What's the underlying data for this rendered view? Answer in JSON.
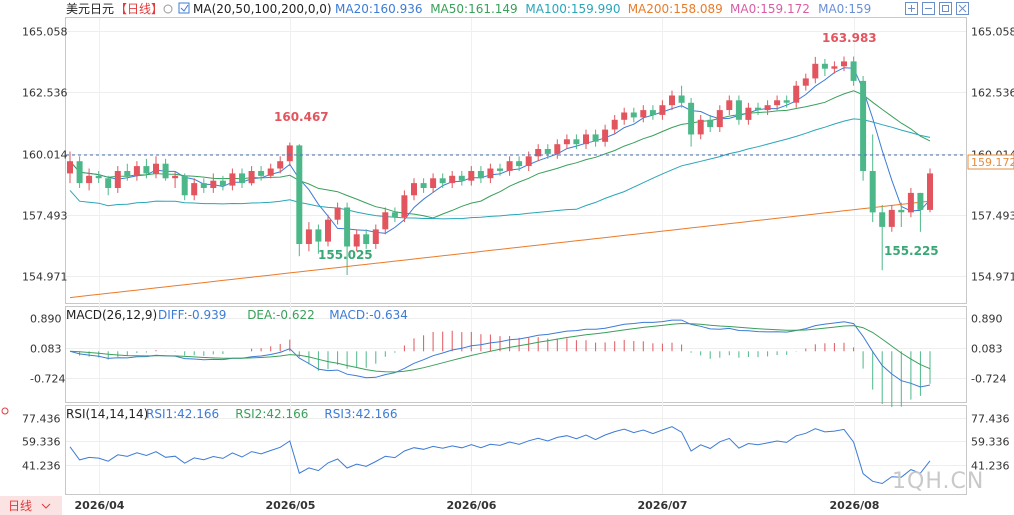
{
  "header": {
    "symbol": "美元日元",
    "period": "【日线】",
    "ma_title": "MA(20,50,100,200,0,0)",
    "ma_values": [
      {
        "label": "MA20:160.936",
        "color": "#3d7bd6"
      },
      {
        "label": "MA50:161.149",
        "color": "#3aa05a"
      },
      {
        "label": "MA100:159.990",
        "color": "#2aa6b8"
      },
      {
        "label": "MA200:158.089",
        "color": "#ea7b2a"
      },
      {
        "label": "MA0:159.172",
        "color": "#d95da5"
      },
      {
        "label": "MA0:159",
        "color": "#6b8fd6"
      }
    ]
  },
  "toolbar_icons": [
    "expand-icon",
    "shrink-icon",
    "restore-icon",
    "close-icon"
  ],
  "price_axis": {
    "ticks": [
      "165.058",
      "162.536",
      "160.014",
      "157.493",
      "154.971"
    ],
    "current": "159.172"
  },
  "annotations": {
    "high": "163.983",
    "high2": "160.467",
    "low1": "155.025",
    "low2": "155.225"
  },
  "macd": {
    "title": "MACD(26,12,9)",
    "values": [
      {
        "label": "DIFF:-0.939",
        "color": "#3d7bd6"
      },
      {
        "label": "DEA:-0.622",
        "color": "#3aa05a"
      },
      {
        "label": "MACD:-0.634",
        "color": "#3d7bd6"
      }
    ],
    "ticks": [
      "0.890",
      "0.083",
      "-0.724"
    ]
  },
  "rsi": {
    "title": "RSI(14,14,14)",
    "values": [
      {
        "label": "RSI1:42.166",
        "color": "#3d7bd6"
      },
      {
        "label": "RSI2:42.166",
        "color": "#3aa05a"
      },
      {
        "label": "RSI3:42.166",
        "color": "#3d7bd6"
      }
    ],
    "ticks": [
      "77.436",
      "59.336",
      "41.236"
    ]
  },
  "footer": {
    "period_label": "日线",
    "watermark": "1QH.CN"
  },
  "chart_data": {
    "type": "candlestick",
    "x_labels": [
      "2026/04",
      "2026/05",
      "2026/06",
      "2026/07",
      "2026/08"
    ],
    "x_label_index": [
      3,
      23,
      42,
      62,
      82
    ],
    "ylim": [
      154.0,
      165.5
    ],
    "grid": true,
    "candles": [
      [
        159.2,
        159.7,
        158.8,
        160.1
      ],
      [
        159.7,
        158.8,
        158.6,
        159.9
      ],
      [
        158.8,
        159.1,
        158.5,
        159.4
      ],
      [
        159.1,
        159.0,
        158.8,
        159.3
      ],
      [
        159.0,
        158.6,
        158.3,
        159.1
      ],
      [
        158.6,
        159.3,
        158.4,
        159.5
      ],
      [
        159.3,
        159.1,
        158.9,
        159.6
      ],
      [
        159.1,
        159.5,
        158.9,
        159.7
      ],
      [
        159.5,
        159.2,
        159.0,
        159.8
      ],
      [
        159.2,
        159.6,
        159.0,
        159.9
      ],
      [
        159.6,
        159.0,
        158.9,
        159.8
      ],
      [
        159.0,
        159.1,
        158.6,
        159.3
      ],
      [
        159.1,
        158.3,
        158.1,
        159.2
      ],
      [
        158.3,
        158.8,
        158.1,
        159.0
      ],
      [
        158.8,
        158.6,
        158.4,
        159.0
      ],
      [
        158.6,
        158.9,
        158.4,
        159.2
      ],
      [
        158.9,
        158.7,
        158.5,
        159.1
      ],
      [
        158.7,
        159.2,
        158.5,
        159.4
      ],
      [
        159.2,
        158.8,
        158.6,
        159.4
      ],
      [
        158.8,
        159.3,
        158.7,
        159.5
      ],
      [
        159.3,
        159.1,
        158.9,
        159.5
      ],
      [
        159.1,
        159.4,
        159.0,
        159.6
      ],
      [
        159.4,
        159.7,
        159.2,
        159.9
      ],
      [
        159.7,
        160.35,
        159.5,
        160.467
      ],
      [
        160.35,
        156.3,
        155.8,
        160.4
      ],
      [
        156.3,
        156.9,
        156.0,
        157.2
      ],
      [
        156.9,
        156.4,
        155.9,
        157.1
      ],
      [
        156.4,
        157.3,
        156.2,
        157.5
      ],
      [
        157.3,
        157.8,
        157.1,
        158.0
      ],
      [
        157.8,
        156.2,
        155.025,
        158.0
      ],
      [
        156.2,
        156.7,
        156.0,
        156.9
      ],
      [
        156.7,
        156.3,
        156.1,
        156.9
      ],
      [
        156.3,
        156.9,
        156.1,
        157.1
      ],
      [
        156.9,
        157.6,
        156.7,
        157.8
      ],
      [
        157.6,
        157.4,
        157.2,
        157.8
      ],
      [
        157.4,
        158.3,
        157.2,
        158.5
      ],
      [
        158.3,
        158.8,
        158.1,
        159.0
      ],
      [
        158.8,
        158.6,
        158.4,
        159.0
      ],
      [
        158.6,
        159.0,
        158.4,
        159.2
      ],
      [
        159.0,
        158.8,
        158.6,
        159.2
      ],
      [
        158.8,
        159.1,
        158.6,
        159.3
      ],
      [
        159.1,
        158.9,
        158.7,
        159.3
      ],
      [
        158.9,
        159.3,
        158.7,
        159.5
      ],
      [
        159.3,
        159.0,
        158.8,
        159.5
      ],
      [
        159.0,
        159.4,
        158.8,
        159.6
      ],
      [
        159.4,
        159.3,
        159.1,
        159.6
      ],
      [
        159.3,
        159.7,
        159.1,
        159.9
      ],
      [
        159.7,
        159.5,
        159.3,
        159.9
      ],
      [
        159.5,
        159.9,
        159.3,
        160.1
      ],
      [
        159.9,
        160.2,
        159.7,
        160.4
      ],
      [
        160.2,
        160.0,
        159.8,
        160.4
      ],
      [
        160.0,
        160.4,
        159.8,
        160.6
      ],
      [
        160.4,
        160.6,
        160.2,
        160.8
      ],
      [
        160.6,
        160.4,
        160.2,
        160.8
      ],
      [
        160.4,
        160.8,
        160.2,
        161.0
      ],
      [
        160.8,
        160.5,
        160.3,
        161.0
      ],
      [
        160.5,
        161.0,
        160.3,
        161.2
      ],
      [
        161.0,
        161.4,
        160.8,
        161.6
      ],
      [
        161.4,
        161.7,
        161.2,
        161.9
      ],
      [
        161.7,
        161.5,
        161.3,
        161.9
      ],
      [
        161.5,
        161.8,
        161.3,
        162.0
      ],
      [
        161.8,
        161.6,
        161.4,
        162.0
      ],
      [
        161.6,
        162.0,
        161.4,
        162.2
      ],
      [
        162.0,
        162.4,
        161.8,
        162.6
      ],
      [
        162.4,
        162.1,
        161.9,
        162.8
      ],
      [
        162.1,
        160.8,
        160.3,
        162.3
      ],
      [
        160.8,
        161.4,
        160.6,
        161.6
      ],
      [
        161.4,
        161.1,
        160.9,
        161.6
      ],
      [
        161.1,
        161.8,
        160.9,
        162.0
      ],
      [
        161.8,
        162.2,
        161.6,
        162.4
      ],
      [
        162.2,
        161.4,
        161.2,
        162.4
      ],
      [
        161.4,
        161.9,
        161.2,
        162.1
      ],
      [
        161.9,
        161.8,
        161.6,
        162.1
      ],
      [
        161.8,
        162.0,
        161.6,
        162.2
      ],
      [
        162.0,
        162.2,
        161.8,
        162.4
      ],
      [
        162.2,
        162.1,
        161.9,
        162.4
      ],
      [
        162.1,
        162.8,
        161.9,
        163.0
      ],
      [
        162.8,
        163.1,
        162.6,
        163.3
      ],
      [
        163.1,
        163.7,
        162.9,
        163.983
      ],
      [
        163.7,
        163.5,
        163.2,
        163.9
      ],
      [
        163.5,
        163.6,
        163.3,
        163.8
      ],
      [
        163.6,
        163.8,
        163.4,
        164.0
      ],
      [
        163.8,
        163.0,
        162.8,
        164.0
      ],
      [
        163.0,
        159.3,
        158.9,
        163.2
      ],
      [
        159.3,
        157.6,
        157.2,
        160.8
      ],
      [
        157.6,
        157.0,
        155.225,
        157.9
      ],
      [
        157.0,
        157.7,
        156.8,
        157.9
      ],
      [
        157.7,
        157.6,
        157.0,
        158.0
      ],
      [
        157.6,
        158.4,
        157.4,
        158.6
      ],
      [
        158.4,
        157.7,
        156.8,
        158.4
      ],
      [
        157.7,
        159.2,
        157.6,
        159.4
      ]
    ],
    "macd_hist_scale": [
      -0.8,
      1.0
    ],
    "rsi_scale": [
      20,
      85
    ]
  }
}
